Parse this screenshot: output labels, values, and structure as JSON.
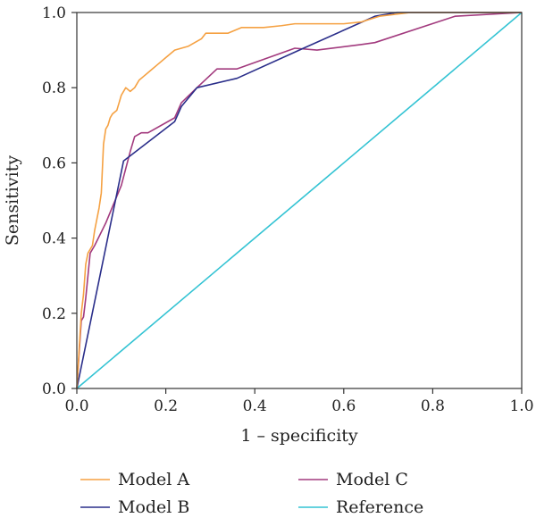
{
  "chart_data": {
    "type": "line",
    "xlabel": "1 – specificity",
    "ylabel": "Sensitivity",
    "xlim": [
      0,
      1
    ],
    "ylim": [
      0,
      1
    ],
    "x_ticks": [
      "0.0",
      "0.2",
      "0.4",
      "0.6",
      "0.8",
      "1.0"
    ],
    "y_ticks": [
      "0.0",
      "0.2",
      "0.4",
      "0.6",
      "0.8",
      "1.0"
    ],
    "grid": false,
    "legend_position": "bottom",
    "series": [
      {
        "name": "Model A",
        "color": "#F5A142",
        "points": [
          [
            0,
            0
          ],
          [
            0.005,
            0.1
          ],
          [
            0.01,
            0.2
          ],
          [
            0.015,
            0.25
          ],
          [
            0.02,
            0.33
          ],
          [
            0.025,
            0.36
          ],
          [
            0.035,
            0.38
          ],
          [
            0.04,
            0.42
          ],
          [
            0.05,
            0.48
          ],
          [
            0.055,
            0.52
          ],
          [
            0.06,
            0.65
          ],
          [
            0.065,
            0.69
          ],
          [
            0.07,
            0.7
          ],
          [
            0.075,
            0.72
          ],
          [
            0.08,
            0.73
          ],
          [
            0.09,
            0.74
          ],
          [
            0.095,
            0.76
          ],
          [
            0.1,
            0.78
          ],
          [
            0.11,
            0.8
          ],
          [
            0.12,
            0.79
          ],
          [
            0.13,
            0.8
          ],
          [
            0.14,
            0.82
          ],
          [
            0.15,
            0.83
          ],
          [
            0.16,
            0.84
          ],
          [
            0.17,
            0.85
          ],
          [
            0.18,
            0.86
          ],
          [
            0.2,
            0.88
          ],
          [
            0.22,
            0.9
          ],
          [
            0.25,
            0.91
          ],
          [
            0.28,
            0.93
          ],
          [
            0.29,
            0.945
          ],
          [
            0.32,
            0.945
          ],
          [
            0.34,
            0.945
          ],
          [
            0.37,
            0.96
          ],
          [
            0.42,
            0.96
          ],
          [
            0.46,
            0.965
          ],
          [
            0.49,
            0.97
          ],
          [
            0.6,
            0.97
          ],
          [
            0.64,
            0.975
          ],
          [
            0.68,
            0.99
          ],
          [
            0.75,
            1.0
          ],
          [
            0.8,
            1.0
          ],
          [
            1.0,
            1.0
          ]
        ]
      },
      {
        "name": "Model B",
        "color": "#2A2E8A",
        "points": [
          [
            0,
            0
          ],
          [
            0.105,
            0.605
          ],
          [
            0.22,
            0.71
          ],
          [
            0.235,
            0.75
          ],
          [
            0.27,
            0.8
          ],
          [
            0.36,
            0.825
          ],
          [
            0.5,
            0.9
          ],
          [
            0.67,
            0.99
          ],
          [
            0.72,
            1.0
          ],
          [
            1.0,
            1.0
          ]
        ]
      },
      {
        "name": "Model C",
        "color": "#A23A7E",
        "points": [
          [
            0,
            0
          ],
          [
            0.01,
            0.18
          ],
          [
            0.015,
            0.19
          ],
          [
            0.02,
            0.24
          ],
          [
            0.025,
            0.3
          ],
          [
            0.03,
            0.36
          ],
          [
            0.04,
            0.38
          ],
          [
            0.065,
            0.44
          ],
          [
            0.1,
            0.54
          ],
          [
            0.12,
            0.63
          ],
          [
            0.13,
            0.67
          ],
          [
            0.145,
            0.68
          ],
          [
            0.16,
            0.68
          ],
          [
            0.22,
            0.72
          ],
          [
            0.235,
            0.76
          ],
          [
            0.27,
            0.8
          ],
          [
            0.315,
            0.85
          ],
          [
            0.36,
            0.85
          ],
          [
            0.49,
            0.905
          ],
          [
            0.54,
            0.9
          ],
          [
            0.64,
            0.915
          ],
          [
            0.67,
            0.92
          ],
          [
            0.85,
            0.99
          ],
          [
            1.0,
            1.0
          ]
        ]
      },
      {
        "name": "Reference",
        "color": "#33C3D3",
        "points": [
          [
            0,
            0
          ],
          [
            1,
            1
          ]
        ]
      }
    ]
  }
}
